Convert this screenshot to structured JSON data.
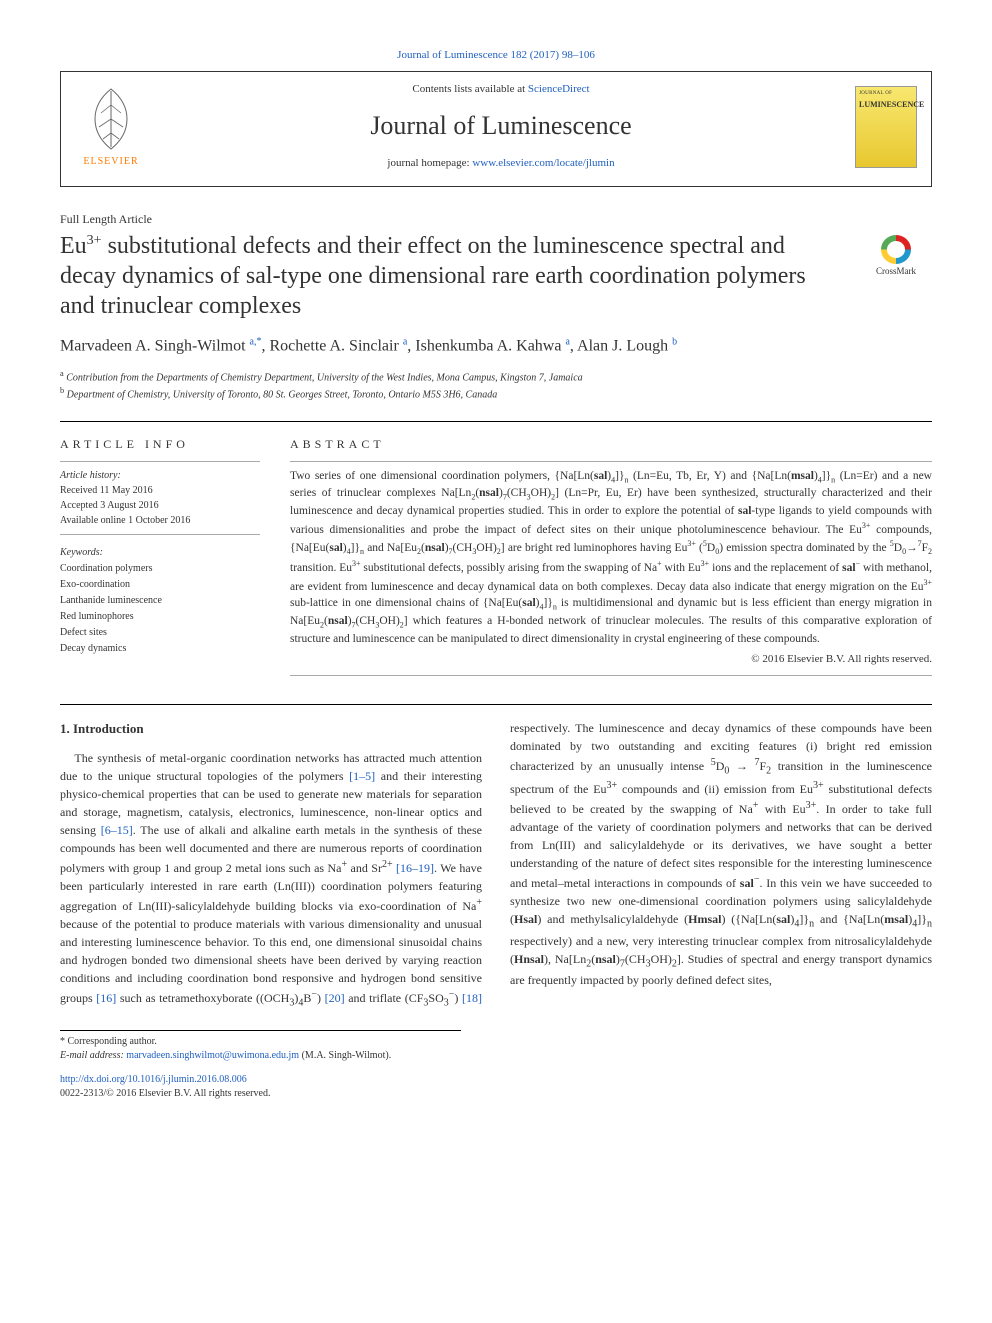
{
  "top_link_prefix": "Journal of Luminescence 182 (2017) 98–106",
  "header": {
    "contents_line_prefix": "Contents lists available at ",
    "contents_line_link": "ScienceDirect",
    "journal_name": "Journal of Luminescence",
    "homepage_prefix": "journal homepage: ",
    "homepage_url": "www.elsevier.com/locate/jlumin",
    "elsevier_label": "ELSEVIER",
    "cover_small": "JOURNAL OF",
    "cover_big": "LUMINESCENCE"
  },
  "article_type": "Full Length Article",
  "title_html": "Eu<sup>3+</sup> substitutional defects and their effect on the luminescence spectral and decay dynamics of sal-type one dimensional rare earth coordination polymers and trinuclear complexes",
  "crossmark_label": "CrossMark",
  "authors_html": "Marvadeen A. Singh-Wilmot <a><sup>a,</sup></a><sup>*</sup>, Rochette A. Sinclair <a><sup>a</sup></a>, Ishenkumba A. Kahwa <a><sup>a</sup></a>, Alan J. Lough <a><sup>b</sup></a>",
  "affiliations": {
    "a": "Contribution from the Departments of Chemistry Department, University of the West Indies, Mona Campus, Kingston 7, Jamaica",
    "b": "Department of Chemistry, University of Toronto, 80 St. Georges Street, Toronto, Ontario M5S 3H6, Canada"
  },
  "info": {
    "section_label": "ARTICLE INFO",
    "history_label": "Article history:",
    "received": "Received 11 May 2016",
    "accepted": "Accepted 3 August 2016",
    "online": "Available online 1 October 2016",
    "keywords_label": "Keywords:",
    "keywords": [
      "Coordination polymers",
      "Exo-coordination",
      "Lanthanide luminescence",
      "Red luminophores",
      "Defect sites",
      "Decay dynamics"
    ]
  },
  "abstract": {
    "section_label": "ABSTRACT",
    "text_html": "Two series of one dimensional coordination polymers, {Na[Ln(<b>sal</b>)<sub>4</sub>]}<sub>n</sub> (Ln=Eu, Tb, Er, Y) and {Na[Ln(<b>msal</b>)<sub>4</sub>]}<sub>n</sub> (Ln=Er) and a new series of trinuclear complexes Na[Ln<sub>2</sub>(<b>nsal</b>)<sub>7</sub>(CH<sub>3</sub>OH)<sub>2</sub>] (Ln=Pr, Eu, Er) have been synthesized, structurally characterized and their luminescence and decay dynamical properties studied. This in order to explore the potential of <b>sal</b>-type ligands to yield compounds with various dimensionalities and probe the impact of defect sites on their unique photoluminescence behaviour. The Eu<sup>3+</sup> compounds, {Na[Eu(<b>sal</b>)<sub>4</sub>]}<sub>n</sub> and Na[Eu<sub>2</sub>(<b>nsal</b>)<sub>7</sub>(CH<sub>3</sub>OH)<sub>2</sub>] are bright red luminophores having Eu<sup>3+</sup> (<sup>5</sup>D<sub>0</sub>) emission spectra dominated by the <sup>5</sup>D<sub>0</sub>→<sup>7</sup>F<sub>2</sub> transition. Eu<sup>3+</sup> substitutional defects, possibly arising from the swapping of Na<sup>+</sup> with Eu<sup>3+</sup> ions and the replacement of <b>sal</b><sup>−</sup> with methanol, are evident from luminescence and decay dynamical data on both complexes. Decay data also indicate that energy migration on the Eu<sup>3+</sup> sub-lattice in one dimensional chains of {Na[Eu(<b>sal</b>)<sub>4</sub>]}<sub>n</sub> is multidimensional and dynamic but is less efficient than energy migration in Na[Eu<sub>2</sub>(<b>nsal</b>)<sub>7</sub>(CH<sub>3</sub>OH)<sub>2</sub>] which features a H-bonded network of trinuclear molecules. The results of this comparative exploration of structure and luminescence can be manipulated to direct dimensionality in crystal engineering of these compounds.",
    "copyright": "© 2016 Elsevier B.V. All rights reserved."
  },
  "body": {
    "heading": "1. Introduction",
    "para_html": "The synthesis of metal-organic coordination networks has attracted much attention due to the unique structural topologies of the polymers <a>[1–5]</a> and their interesting physico-chemical properties that can be used to generate new materials for separation and storage, magnetism, catalysis, electronics, luminescence, non-linear optics and sensing <a>[6–15]</a>. The use of alkali and alkaline earth metals in the synthesis of these compounds has been well documented and there are numerous reports of coordination polymers with group 1 and group 2 metal ions such as Na<sup>+</sup> and Sr<sup>2+</sup> <a>[16–19]</a>. We have been particularly interested in rare earth (Ln(III)) coordination polymers featuring aggregation of Ln(III)-salicylaldehyde building blocks via exo-coordination of Na<sup>+</sup> because of the potential to produce materials with various dimensionality and unusual and interesting luminescence behavior. To this end, one dimensional sinusoidal chains and hydrogen bonded two dimensional sheets have been derived by varying reaction conditions and including coordination bond responsive and hydrogen bond sensitive groups <a>[16]</a> such as tetramethoxyborate ((OCH<sub>3</sub>)<sub>4</sub>B<sup>−</sup>) <a>[20]</a> and triflate (CF<sub>3</sub>SO<sub>3</sub><sup>−</sup>) <a>[18]</a> respectively. The luminescence and decay dynamics of these compounds have been dominated by two outstanding and exciting features (i) bright red emission characterized by an unusually intense <sup>5</sup>D<sub>0</sub> → <sup>7</sup>F<sub>2</sub> transition in the luminescence spectrum of the Eu<sup>3+</sup> compounds and (ii) emission from Eu<sup>3+</sup> substitutional defects believed to be created by the swapping of Na<sup>+</sup> with Eu<sup>3+</sup>. In order to take full advantage of the variety of coordination polymers and networks that can be derived from Ln(III) and salicylaldehyde or its derivatives, we have sought a better understanding of the nature of defect sites responsible for the interesting luminescence and metal–metal interactions in compounds of <b>sal</b><sup>−</sup>. In this vein we have succeeded to synthesize two new one-dimensional coordination polymers using salicylaldehyde (<b>Hsal</b>) and methylsalicylaldehyde (<b>Hmsal</b>) ({Na[Ln(<b>sal</b>)<sub>4</sub>]}<sub>n</sub> and {Na[Ln(<b>msal</b>)<sub>4</sub>]}<sub>n</sub> respectively) and a new, very interesting trinuclear complex from nitrosalicylaldehyde (<b>Hnsal</b>), Na[Ln<sub>2</sub>(<b>nsal</b>)<sub>7</sub>(CH<sub>3</sub>OH)<sub>2</sub>]. Studies of spectral and energy transport dynamics are frequently impacted by poorly defined defect sites,"
  },
  "footnotes": {
    "corr": "* Corresponding author.",
    "email_label": "E-mail address: ",
    "email": "marvadeen.singhwilmot@uwimona.edu.jm",
    "email_suffix": " (M.A. Singh-Wilmot)."
  },
  "doi": {
    "url": "http://dx.doi.org/10.1016/j.jlumin.2016.08.006",
    "issn": "0022-2313/© 2016 Elsevier B.V. All rights reserved."
  }
}
